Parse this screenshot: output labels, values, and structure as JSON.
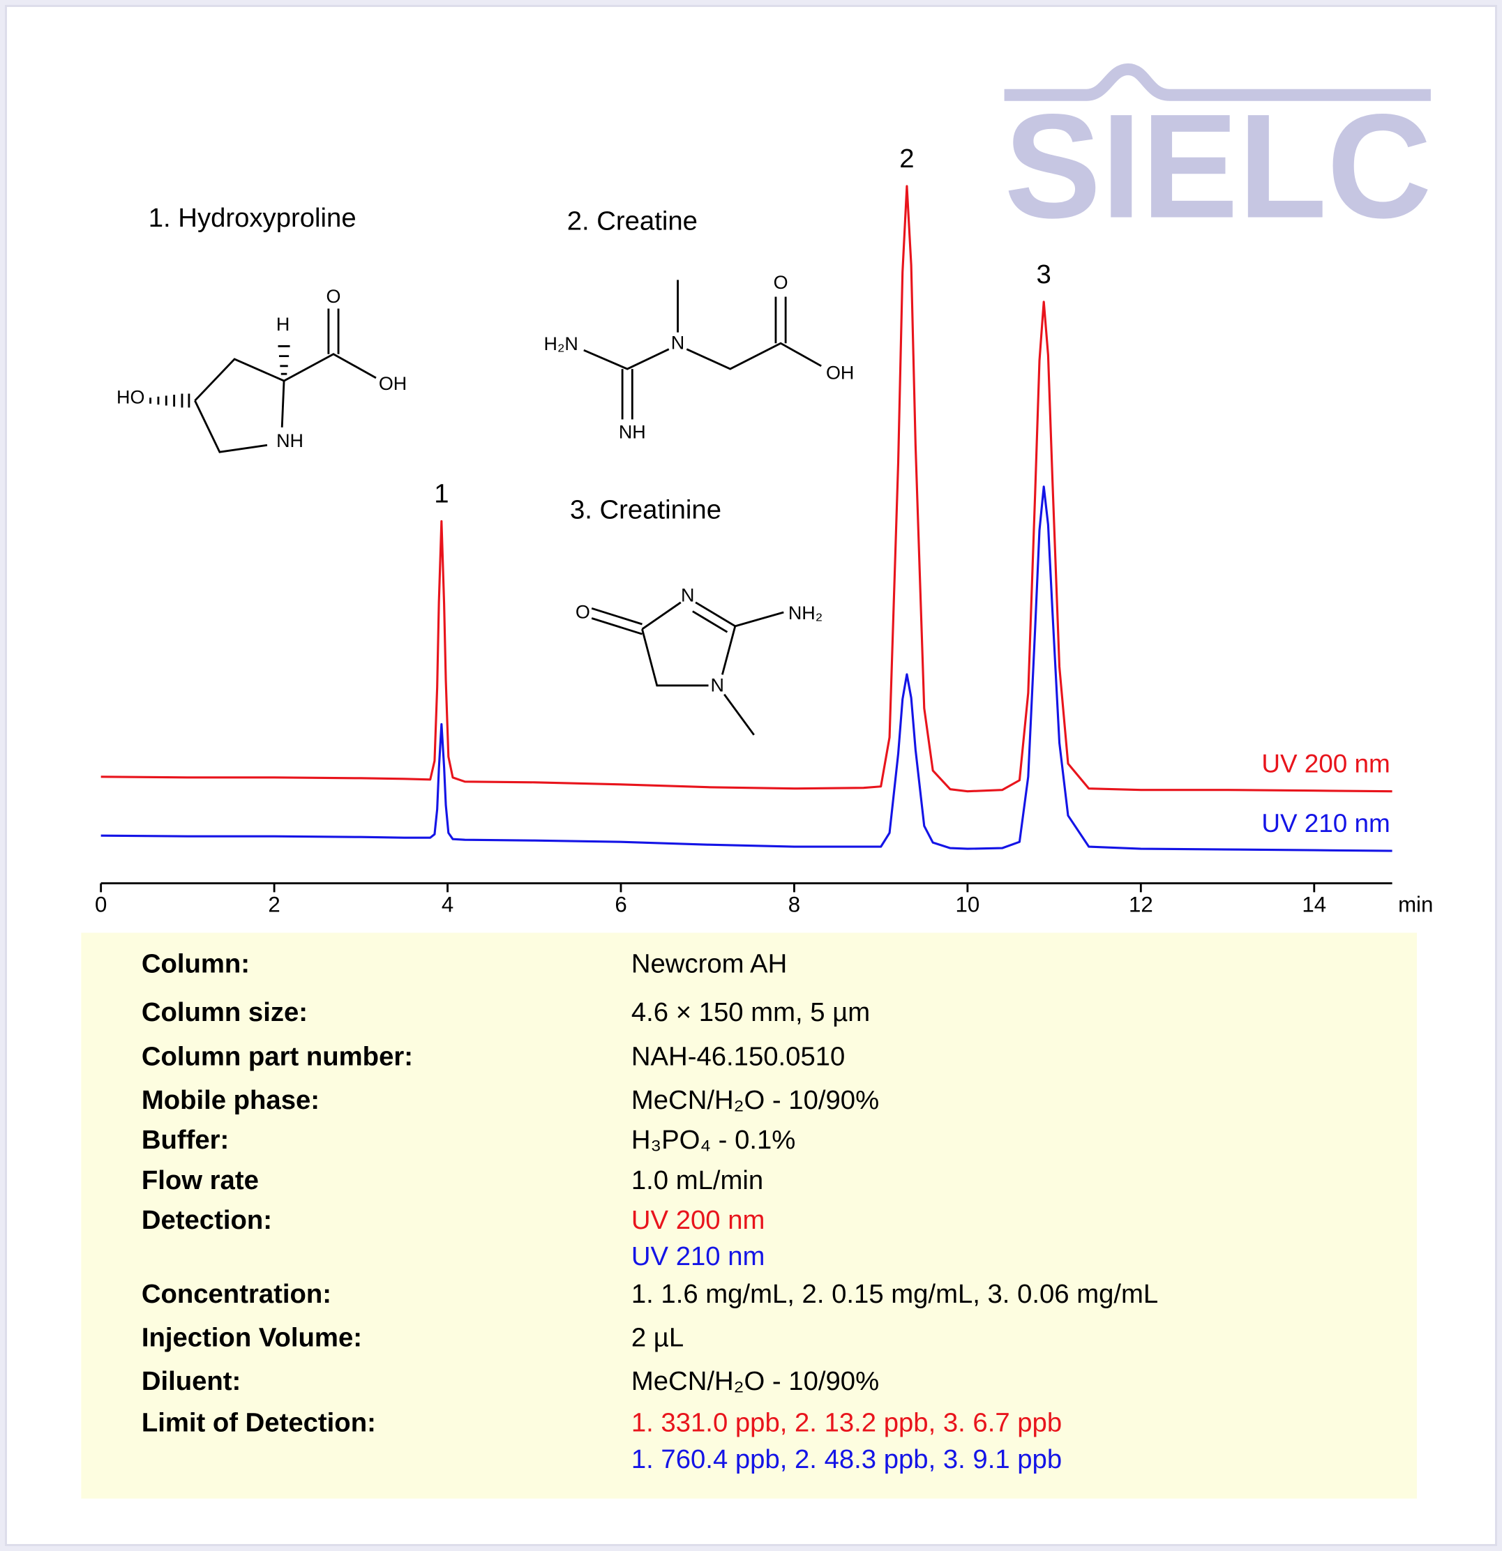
{
  "chart_data": {
    "type": "line",
    "x_label": "min",
    "xlim": [
      0,
      14.9
    ],
    "xticks": [
      0,
      2,
      4,
      6,
      8,
      10,
      12,
      14
    ],
    "ylim": [
      0,
      100
    ],
    "x": [
      0,
      1,
      2,
      3,
      3.5,
      3.8,
      3.85,
      3.88,
      3.9,
      3.93,
      3.96,
      3.98,
      4.01,
      4.06,
      4.2,
      5,
      6,
      7,
      8,
      8.8,
      9.0,
      9.1,
      9.2,
      9.25,
      9.3,
      9.35,
      9.4,
      9.5,
      9.6,
      9.8,
      10,
      10.4,
      10.6,
      10.7,
      10.78,
      10.83,
      10.88,
      10.93,
      10.98,
      11.06,
      11.16,
      11.4,
      12,
      13,
      14,
      14.9
    ],
    "series": [
      {
        "name": "UV 200 nm",
        "color": "#e8141c",
        "values": [
          12.1,
          12.0,
          12.0,
          11.9,
          11.8,
          11.7,
          14.4,
          25,
          37.3,
          49,
          37.1,
          26,
          15,
          12,
          11.4,
          11.3,
          11,
          10.6,
          10.4,
          10.5,
          10.7,
          17.8,
          57.4,
          85,
          97.4,
          86,
          60,
          22,
          13,
          10.3,
          10,
          10.2,
          11.6,
          24.2,
          53,
          72.2,
          80.7,
          73,
          55,
          28,
          14,
          10.4,
          10.2,
          10.2,
          10.1,
          10
        ]
      },
      {
        "name": "UV 210 nm",
        "color": "#1414e6",
        "values": [
          3.6,
          3.5,
          3.5,
          3.4,
          3.3,
          3.3,
          3.8,
          7.4,
          13.3,
          19.7,
          13.5,
          8,
          4,
          3.1,
          3.0,
          2.9,
          2.7,
          2.3,
          2.0,
          2.0,
          2.0,
          4.0,
          15.4,
          23.3,
          26.9,
          23.5,
          16,
          5,
          2.6,
          1.8,
          1.7,
          1.8,
          2.7,
          12.1,
          33.5,
          47.7,
          54,
          48.5,
          36,
          17,
          6.5,
          2.0,
          1.7,
          1.6,
          1.5,
          1.4
        ]
      }
    ],
    "peaks": [
      {
        "label": "1",
        "x": 3.93
      },
      {
        "label": "2",
        "x": 9.3
      },
      {
        "label": "3",
        "x": 10.88
      }
    ]
  },
  "logo": "SIELC",
  "structures": [
    {
      "name": "1. Hydroxyproline",
      "atoms": [
        "HO",
        "H",
        "O",
        "OH",
        "NH"
      ]
    },
    {
      "name": "2. Creatine",
      "atoms": [
        "H₂N",
        "N",
        "O",
        "OH",
        "NH"
      ]
    },
    {
      "name": "3. Creatinine",
      "atoms": [
        "O",
        "N",
        "NH₂",
        "N"
      ]
    }
  ],
  "conditions": [
    {
      "label": "Column:",
      "value": "Newcrom AH"
    },
    {
      "label": "Column size:",
      "value": "4.6 × 150 mm, 5 µm"
    },
    {
      "label": "Column part number:",
      "value": "NAH-46.150.0510"
    },
    {
      "label": "Mobile phase:",
      "value": "MeCN/H₂O - 10/90%"
    },
    {
      "label": "Buffer:",
      "value": "H₃PO₄ - 0.1%"
    },
    {
      "label": "Flow rate",
      "value": "1.0 mL/min"
    },
    {
      "label": "Detection:",
      "value": [
        "UV 200 nm",
        "UV 210 nm"
      ],
      "colors": [
        "#e8141c",
        "#1414e6"
      ]
    },
    {
      "label": "Concentration:",
      "value": "1. 1.6 mg/mL, 2. 0.15 mg/mL, 3. 0.06 mg/mL"
    },
    {
      "label": "Injection Volume:",
      "value": "2 µL"
    },
    {
      "label": "Diluent:",
      "value": "MeCN/H₂O - 10/90%"
    },
    {
      "label": "Limit of Detection:",
      "value": [
        "1. 331.0 ppb, 2. 13.2 ppb, 3. 6.7 ppb",
        "1. 760.4 ppb, 2. 48.3 ppb, 3. 9.1 ppb"
      ],
      "colors": [
        "#e8141c",
        "#1414e6"
      ]
    }
  ]
}
